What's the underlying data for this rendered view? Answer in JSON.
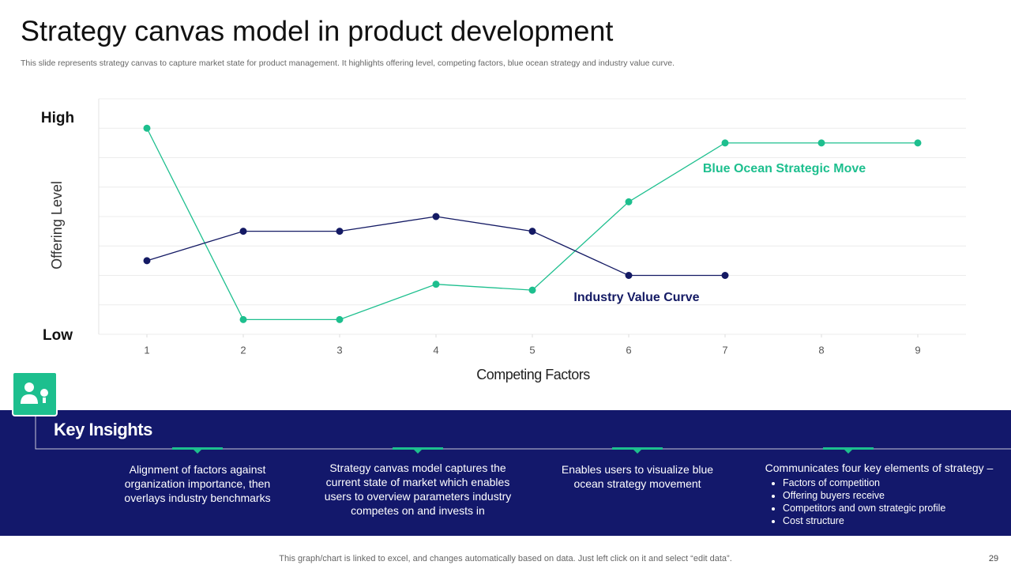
{
  "title": "Strategy canvas model in product development",
  "subtitle": "This slide represents strategy canvas to capture market state for product management. It highlights offering level, competing factors, blue ocean strategy and industry value curve.",
  "chart_data": {
    "type": "line",
    "x_label": "Competing Factors",
    "y_label": "Offering Level",
    "y_range_labels": [
      "Low",
      "High"
    ],
    "x": [
      1,
      2,
      3,
      4,
      5,
      6,
      7,
      8,
      9
    ],
    "xlim": [
      0.5,
      9.5
    ],
    "xticks": [
      1,
      2,
      3,
      4,
      5,
      6,
      7,
      8,
      9
    ],
    "ylim": [
      0,
      8
    ],
    "yticks": [
      0,
      1,
      2,
      3,
      4,
      5,
      6,
      7,
      8
    ],
    "grid": true,
    "series": [
      {
        "name": "Blue Ocean Strategic Move",
        "color": "#1dbf8e",
        "values": [
          7,
          0.5,
          0.5,
          1.7,
          1.5,
          4.5,
          6.5,
          6.5,
          6.5
        ]
      },
      {
        "name": "Industry Value Curve",
        "color": "#141a64",
        "values": [
          2.5,
          3.5,
          3.5,
          4,
          3.5,
          2,
          2,
          null,
          null
        ]
      }
    ]
  },
  "insights": {
    "title": "Key Insights",
    "items": [
      {
        "text": "Alignment of factors against organization importance, then overlays industry benchmarks"
      },
      {
        "text": "Strategy canvas model captures the current state of market which enables users to overview parameters industry competes on and invests in"
      },
      {
        "text": "Enables users to visualize blue ocean strategy movement"
      },
      {
        "text": "Communicates four key elements of strategy –",
        "bullets": [
          "Factors of competition",
          "Offering  buyers receive",
          "Competitors and own strategic profile",
          "Cost structure"
        ]
      }
    ]
  },
  "footer": "This graph/chart is linked to excel,  and changes automatically based on data. Just left click on it and select “edit data”.",
  "page_number": "29"
}
